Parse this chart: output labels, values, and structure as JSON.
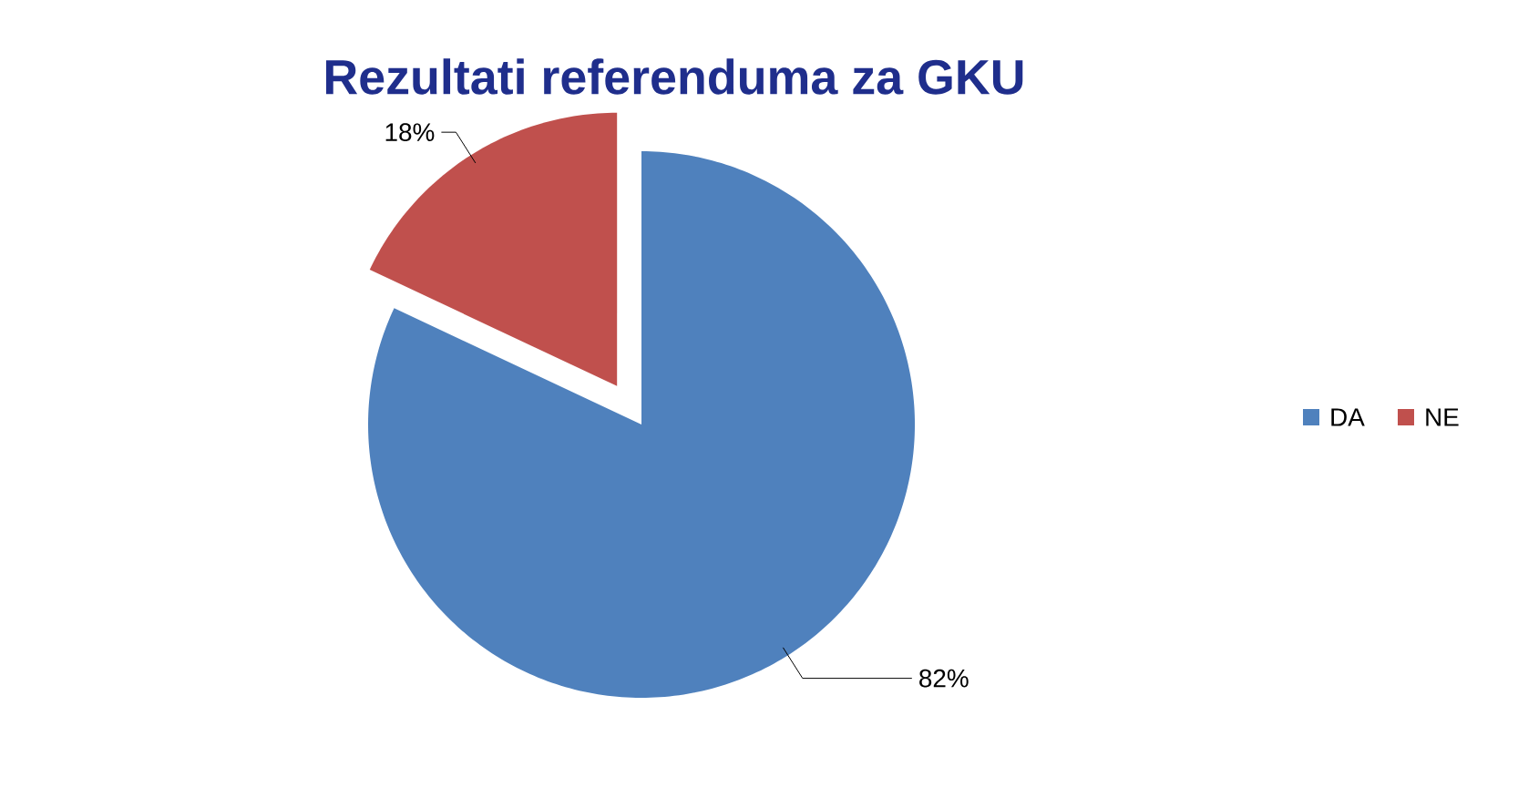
{
  "chart_data": {
    "type": "pie",
    "title": "Rezultati referenduma za GKU",
    "categories": [
      "DA",
      "NE"
    ],
    "values": [
      82,
      18
    ],
    "colors": [
      "#4f81bd",
      "#c0504d"
    ],
    "value_labels": [
      "82%",
      "18%"
    ],
    "legend": "right"
  }
}
